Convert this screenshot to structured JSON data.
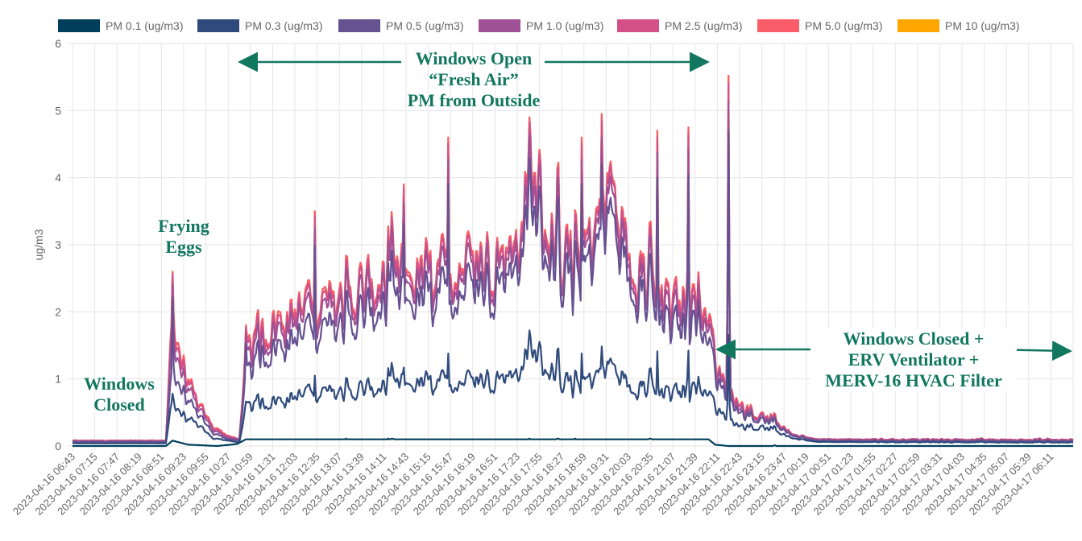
{
  "chart_data": {
    "type": "line",
    "ylabel": "ug/m3",
    "ylim": [
      0,
      6
    ],
    "yticks": [
      "0",
      "1",
      "2",
      "3",
      "4",
      "5",
      "6"
    ],
    "grid": true,
    "legend_position": "top",
    "x_tick_labels": [
      "2023-04-16 06:43",
      "2023-04-16 07:15",
      "2023-04-16 07:47",
      "2023-04-16 08:19",
      "2023-04-16 08:51",
      "2023-04-16 09:23",
      "2023-04-16 09:55",
      "2023-04-16 10:27",
      "2023-04-16 10:59",
      "2023-04-16 11:31",
      "2023-04-16 12:03",
      "2023-04-16 12:35",
      "2023-04-16 13:07",
      "2023-04-16 13:39",
      "2023-04-16 14:11",
      "2023-04-16 14:43",
      "2023-04-16 15:15",
      "2023-04-16 15:47",
      "2023-04-16 16:19",
      "2023-04-16 16:51",
      "2023-04-16 17:23",
      "2023-04-16 17:55",
      "2023-04-16 18:27",
      "2023-04-16 18:59",
      "2023-04-16 19:31",
      "2023-04-16 20:03",
      "2023-04-16 20:35",
      "2023-04-16 21:07",
      "2023-04-16 21:39",
      "2023-04-16 22:11",
      "2023-04-16 22:43",
      "2023-04-16 23:15",
      "2023-04-16 23:47",
      "2023-04-17 00:19",
      "2023-04-17 00:51",
      "2023-04-17 01:23",
      "2023-04-17 01:55",
      "2023-04-17 02:27",
      "2023-04-17 02:59",
      "2023-04-17 03:31",
      "2023-04-17 04:03",
      "2023-04-17 04:35",
      "2023-04-17 05:07",
      "2023-04-17 05:39",
      "2023-04-17 06:11"
    ],
    "series": [
      {
        "name": "PM 0.1 (ug/m3)",
        "color": "#003f5c",
        "keypoints": [
          [
            0,
            0.0
          ],
          [
            4.2,
            0.0
          ],
          [
            4.5,
            0.08
          ],
          [
            5.2,
            0.02
          ],
          [
            6.5,
            0.0
          ],
          [
            7.4,
            0.03
          ],
          [
            7.8,
            0.1
          ],
          [
            12,
            0.1
          ],
          [
            18,
            0.1
          ],
          [
            24,
            0.1
          ],
          [
            28.6,
            0.1
          ],
          [
            28.9,
            0.02
          ],
          [
            29.5,
            0.0
          ],
          [
            45,
            0.0
          ]
        ]
      },
      {
        "name": "PM 0.3 (ug/m3)",
        "color": "#2f4b7c",
        "keypoints": [
          [
            0,
            0.04
          ],
          [
            4.2,
            0.04
          ],
          [
            4.5,
            0.7
          ],
          [
            5.0,
            0.4
          ],
          [
            5.6,
            0.3
          ],
          [
            6.3,
            0.12
          ],
          [
            7.0,
            0.08
          ],
          [
            7.5,
            0.05
          ],
          [
            7.8,
            0.55
          ],
          [
            8.5,
            0.62
          ],
          [
            9.5,
            0.68
          ],
          [
            11,
            0.75
          ],
          [
            12.5,
            0.78
          ],
          [
            14,
            0.85
          ],
          [
            16,
            0.9
          ],
          [
            18,
            0.95
          ],
          [
            19,
            1.0
          ],
          [
            20,
            1.05
          ],
          [
            20.8,
            1.4
          ],
          [
            21.5,
            1.05
          ],
          [
            22.5,
            0.85
          ],
          [
            23.5,
            1.0
          ],
          [
            24.2,
            1.2
          ],
          [
            25,
            0.9
          ],
          [
            26,
            0.85
          ],
          [
            27,
            0.75
          ],
          [
            28,
            0.85
          ],
          [
            28.6,
            0.8
          ],
          [
            29,
            0.5
          ],
          [
            30,
            0.3
          ],
          [
            31,
            0.25
          ],
          [
            31.8,
            0.2
          ],
          [
            32.5,
            0.1
          ],
          [
            33.5,
            0.06
          ],
          [
            45,
            0.05
          ]
        ]
      },
      {
        "name": "PM 0.5 (ug/m3)",
        "color": "#665191",
        "keypoints": [
          [
            0,
            0.06
          ],
          [
            4.2,
            0.06
          ],
          [
            4.5,
            1.2
          ],
          [
            5.0,
            0.7
          ],
          [
            5.6,
            0.45
          ],
          [
            6.3,
            0.2
          ],
          [
            7.0,
            0.1
          ],
          [
            7.5,
            0.08
          ],
          [
            7.8,
            1.0
          ],
          [
            8.5,
            1.3
          ],
          [
            9.5,
            1.5
          ],
          [
            11,
            1.6
          ],
          [
            12.5,
            1.8
          ],
          [
            14,
            2.0
          ],
          [
            16,
            2.1
          ],
          [
            18,
            2.3
          ],
          [
            19,
            2.4
          ],
          [
            20,
            2.6
          ],
          [
            20.8,
            3.5
          ],
          [
            21.5,
            2.6
          ],
          [
            22.5,
            2.3
          ],
          [
            23.5,
            2.8
          ],
          [
            24.2,
            3.4
          ],
          [
            25,
            2.5
          ],
          [
            26,
            2.1
          ],
          [
            27,
            1.7
          ],
          [
            28,
            1.8
          ],
          [
            28.6,
            1.6
          ],
          [
            29,
            0.9
          ],
          [
            30,
            0.5
          ],
          [
            31,
            0.35
          ],
          [
            31.8,
            0.28
          ],
          [
            32.5,
            0.13
          ],
          [
            33.5,
            0.08
          ],
          [
            45,
            0.07
          ]
        ]
      },
      {
        "name": "PM 1.0 (ug/m3)",
        "color": "#a05195",
        "keypoints": [
          [
            0,
            0.07
          ],
          [
            4.2,
            0.07
          ],
          [
            4.5,
            1.7
          ],
          [
            5.0,
            0.9
          ],
          [
            5.6,
            0.55
          ],
          [
            6.3,
            0.25
          ],
          [
            7.0,
            0.12
          ],
          [
            7.5,
            0.09
          ],
          [
            7.8,
            1.2
          ],
          [
            8.5,
            1.5
          ],
          [
            9.5,
            1.75
          ],
          [
            11,
            1.85
          ],
          [
            12.5,
            2.05
          ],
          [
            14,
            2.25
          ],
          [
            16,
            2.35
          ],
          [
            18,
            2.55
          ],
          [
            19,
            2.65
          ],
          [
            20,
            2.8
          ],
          [
            20.8,
            3.8
          ],
          [
            21.5,
            2.8
          ],
          [
            22.5,
            2.5
          ],
          [
            23.5,
            3.0
          ],
          [
            24.2,
            3.7
          ],
          [
            25,
            2.7
          ],
          [
            26,
            2.3
          ],
          [
            27,
            1.9
          ],
          [
            28,
            2.0
          ],
          [
            28.6,
            1.8
          ],
          [
            29,
            1.0
          ],
          [
            30,
            0.55
          ],
          [
            31,
            0.38
          ],
          [
            31.8,
            0.3
          ],
          [
            32.5,
            0.14
          ],
          [
            33.5,
            0.09
          ],
          [
            45,
            0.08
          ]
        ]
      },
      {
        "name": "PM 2.5 (ug/m3)",
        "color": "#d45087",
        "keypoints": [
          [
            0,
            0.08
          ],
          [
            4.2,
            0.08
          ],
          [
            4.5,
            1.9
          ],
          [
            5.0,
            1.0
          ],
          [
            5.6,
            0.6
          ],
          [
            6.3,
            0.28
          ],
          [
            7.0,
            0.14
          ],
          [
            7.5,
            0.1
          ],
          [
            7.8,
            1.3
          ],
          [
            8.5,
            1.6
          ],
          [
            9.5,
            1.85
          ],
          [
            11,
            1.95
          ],
          [
            12.5,
            2.15
          ],
          [
            14,
            2.35
          ],
          [
            16,
            2.45
          ],
          [
            18,
            2.65
          ],
          [
            19,
            2.75
          ],
          [
            20,
            2.9
          ],
          [
            20.8,
            3.95
          ],
          [
            21.5,
            2.9
          ],
          [
            22.5,
            2.6
          ],
          [
            23.5,
            3.1
          ],
          [
            24.2,
            3.85
          ],
          [
            25,
            2.8
          ],
          [
            26,
            2.4
          ],
          [
            27,
            2.0
          ],
          [
            28,
            2.1
          ],
          [
            28.6,
            1.9
          ],
          [
            29,
            1.05
          ],
          [
            30,
            0.6
          ],
          [
            31,
            0.4
          ],
          [
            31.8,
            0.32
          ],
          [
            32.5,
            0.15
          ],
          [
            33.5,
            0.1
          ],
          [
            45,
            0.09
          ]
        ]
      },
      {
        "name": "PM 5.0 (ug/m3)",
        "color": "#f95d6a",
        "keypoints": [
          [
            0,
            0.08
          ],
          [
            4.2,
            0.08
          ],
          [
            4.5,
            2.0
          ],
          [
            5.0,
            1.05
          ],
          [
            5.6,
            0.62
          ],
          [
            6.3,
            0.3
          ],
          [
            7.0,
            0.15
          ],
          [
            7.5,
            0.1
          ],
          [
            7.8,
            1.35
          ],
          [
            8.5,
            1.65
          ],
          [
            9.5,
            1.9
          ],
          [
            11,
            2.0
          ],
          [
            12.5,
            2.2
          ],
          [
            14,
            2.4
          ],
          [
            16,
            2.5
          ],
          [
            18,
            2.7
          ],
          [
            19,
            2.8
          ],
          [
            20,
            2.95
          ],
          [
            20.8,
            4.0
          ],
          [
            21.5,
            2.95
          ],
          [
            22.5,
            2.65
          ],
          [
            23.5,
            3.15
          ],
          [
            24.2,
            3.9
          ],
          [
            25,
            2.85
          ],
          [
            26,
            2.45
          ],
          [
            27,
            2.05
          ],
          [
            28,
            2.15
          ],
          [
            28.6,
            1.95
          ],
          [
            29,
            1.07
          ],
          [
            30,
            0.62
          ],
          [
            31,
            0.41
          ],
          [
            31.8,
            0.33
          ],
          [
            32.5,
            0.15
          ],
          [
            33.5,
            0.1
          ],
          [
            45,
            0.09
          ]
        ]
      },
      {
        "name": "PM 10 (ug/m3)",
        "color": "#ffa600",
        "keypoints": [
          [
            0,
            0.08
          ],
          [
            4.2,
            0.08
          ],
          [
            4.5,
            2.0
          ],
          [
            5.0,
            1.05
          ],
          [
            5.6,
            0.62
          ],
          [
            6.3,
            0.3
          ],
          [
            7.0,
            0.15
          ],
          [
            7.5,
            0.1
          ],
          [
            7.8,
            1.35
          ],
          [
            8.5,
            1.65
          ],
          [
            9.5,
            1.9
          ],
          [
            11,
            2.0
          ],
          [
            12.5,
            2.2
          ],
          [
            14,
            2.4
          ],
          [
            16,
            2.5
          ],
          [
            18,
            2.7
          ],
          [
            19,
            2.8
          ],
          [
            20,
            2.95
          ],
          [
            20.8,
            4.0
          ],
          [
            21.5,
            2.95
          ],
          [
            22.5,
            2.65
          ],
          [
            23.5,
            3.15
          ],
          [
            24.2,
            3.9
          ],
          [
            25,
            2.85
          ],
          [
            26,
            2.45
          ],
          [
            27,
            2.05
          ],
          [
            28,
            2.15
          ],
          [
            28.6,
            1.95
          ],
          [
            29,
            1.07
          ],
          [
            30,
            0.62
          ],
          [
            31,
            0.41
          ],
          [
            31.8,
            0.33
          ],
          [
            32.5,
            0.15
          ],
          [
            33.5,
            0.1
          ],
          [
            45,
            0.09
          ]
        ]
      }
    ],
    "peaks": [
      {
        "x": 4.5,
        "y": 2.6
      },
      {
        "x": 7.8,
        "y": 1.8
      },
      {
        "x": 10.9,
        "y": 3.5
      },
      {
        "x": 14.9,
        "y": 3.9
      },
      {
        "x": 16.9,
        "y": 4.6
      },
      {
        "x": 22.9,
        "y": 4.6
      },
      {
        "x": 23.8,
        "y": 4.95
      },
      {
        "x": 26.3,
        "y": 4.7
      },
      {
        "x": 27.7,
        "y": 4.75
      },
      {
        "x": 29.5,
        "y": 5.52
      }
    ]
  },
  "annotations": {
    "windows_closed": [
      "Windows",
      "Closed"
    ],
    "frying_eggs": [
      "Frying",
      "Eggs"
    ],
    "windows_open": [
      "Windows Open",
      "“Fresh Air”",
      "PM from Outside"
    ],
    "windows_closed_erv": [
      "Windows Closed +",
      "ERV Ventilator +",
      "MERV-16 HVAC Filter"
    ]
  },
  "colors": {
    "annotation": "#12775f",
    "grid": "#e6e6e6"
  }
}
